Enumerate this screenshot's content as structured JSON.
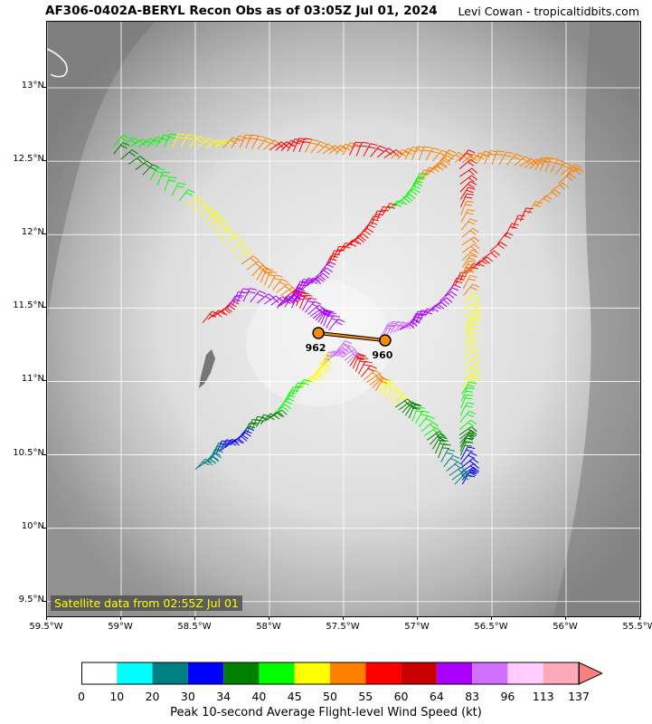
{
  "header": {
    "title": "AF306-0402A-BERYL Recon Obs as of 03:05Z Jul 01, 2024",
    "credit": "Levi Cowan - tropicaltidbits.com"
  },
  "map": {
    "satellite_label": "Satellite data from 02:55Z Jul 01",
    "lon_range": [
      -59.5,
      -55.5
    ],
    "lat_range": [
      9.4,
      13.45
    ],
    "lat_ticks": [
      "13°N",
      "12.5°N",
      "12°N",
      "11.5°N",
      "11°N",
      "10.5°N",
      "10°N",
      "9.5°N"
    ],
    "lon_ticks": [
      "59.5°W",
      "59°W",
      "58.5°W",
      "58°W",
      "57.5°W",
      "57°W",
      "56.5°W",
      "56°W",
      "55.5°W"
    ],
    "centers": [
      {
        "label": "962",
        "lon": -57.67,
        "lat": 11.28
      },
      {
        "label": "960",
        "lon": -57.22,
        "lat": 11.23
      }
    ],
    "track_color": "#ff8c00"
  },
  "colorbar": {
    "label": "Peak 10-second Average Flight-level Wind Speed (kt)",
    "ticks": [
      "0",
      "10",
      "20",
      "30",
      "34",
      "40",
      "45",
      "50",
      "55",
      "60",
      "64",
      "83",
      "96",
      "113",
      "137"
    ],
    "colors": [
      "#ffffff",
      "#00ffff",
      "#008080",
      "#0000ff",
      "#008000",
      "#00ff00",
      "#ffff00",
      "#ff8000",
      "#ff0000",
      "#c80000",
      "#aa00ff",
      "#d070ff",
      "#ffccff",
      "#ffaabb"
    ],
    "extend_color": "#ff7f7f"
  }
}
